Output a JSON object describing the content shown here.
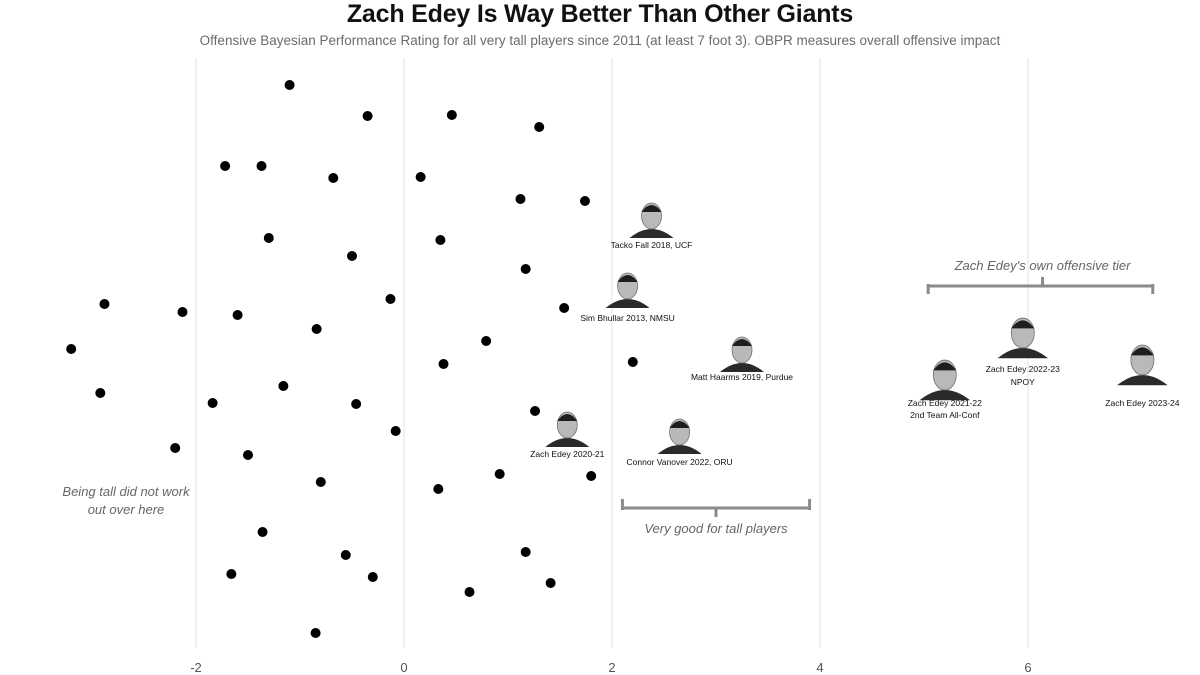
{
  "title": "Zach Edey Is Way Better Than Other Giants",
  "subtitle": "Offensive Bayesian Performance Rating for all very tall players since 2011 (at least 7 foot 3). OBPR measures overall offensive impact",
  "chart_data": {
    "type": "scatter",
    "xlim": [
      -3.2,
      7.5
    ],
    "xticks": [
      -2,
      0,
      2,
      4,
      6
    ],
    "tick_labels": [
      "-2",
      "0",
      "2",
      "4",
      "6"
    ],
    "grid": "vertical",
    "points": [
      {
        "x": -1.1
      },
      {
        "x": -0.35
      },
      {
        "x": 0.46
      },
      {
        "x": 1.3
      },
      {
        "x": -1.72
      },
      {
        "x": -1.37
      },
      {
        "x": -0.68
      },
      {
        "x": 0.16
      },
      {
        "x": 1.12
      },
      {
        "x": 1.74
      },
      {
        "x": -1.3
      },
      {
        "x": 0.35
      },
      {
        "x": -0.5
      },
      {
        "x": 1.17
      },
      {
        "x": -2.88
      },
      {
        "x": -2.13
      },
      {
        "x": -1.6
      },
      {
        "x": -0.13
      },
      {
        "x": 1.54
      },
      {
        "x": -0.84
      },
      {
        "x": -3.2
      },
      {
        "x": 0.79
      },
      {
        "x": 0.38
      },
      {
        "x": 2.2
      },
      {
        "x": -1.16
      },
      {
        "x": -2.92
      },
      {
        "x": -1.84
      },
      {
        "x": -0.46
      },
      {
        "x": 1.26
      },
      {
        "x": -0.08
      },
      {
        "x": -2.2
      },
      {
        "x": -1.5
      },
      {
        "x": 0.92
      },
      {
        "x": 1.8
      },
      {
        "x": -0.8
      },
      {
        "x": 0.33
      },
      {
        "x": -1.36
      },
      {
        "x": -0.56
      },
      {
        "x": 1.17
      },
      {
        "x": -1.66
      },
      {
        "x": -0.3
      },
      {
        "x": 1.41
      },
      {
        "x": 0.63
      },
      {
        "x": -0.85
      }
    ],
    "highlighted": [
      {
        "label": "Tacko Fall 2018, UCF",
        "x": 2.38
      },
      {
        "label": "Sim Bhullar 2013, NMSU",
        "x": 2.15
      },
      {
        "label": "Matt Haarms 2019, Purdue",
        "x": 3.25
      },
      {
        "label": "Zach Edey 2020-21",
        "x": 1.57
      },
      {
        "label": "Connor Vanover 2022, ORU",
        "x": 2.65
      },
      {
        "label": "Zach Edey 2021-22",
        "label2": "2nd Team All-Conf",
        "x": 5.2
      },
      {
        "label": "Zach Edey 2022-23",
        "label2": "NPOY",
        "x": 5.95
      },
      {
        "label": "Zach Edey 2023-24",
        "x": 7.1
      }
    ],
    "annotations": [
      {
        "text": "Being tall did not work",
        "text2": "out over here"
      },
      {
        "text": "Very good for tall players"
      },
      {
        "text": "Zach Edey's own offensive tier"
      }
    ]
  }
}
